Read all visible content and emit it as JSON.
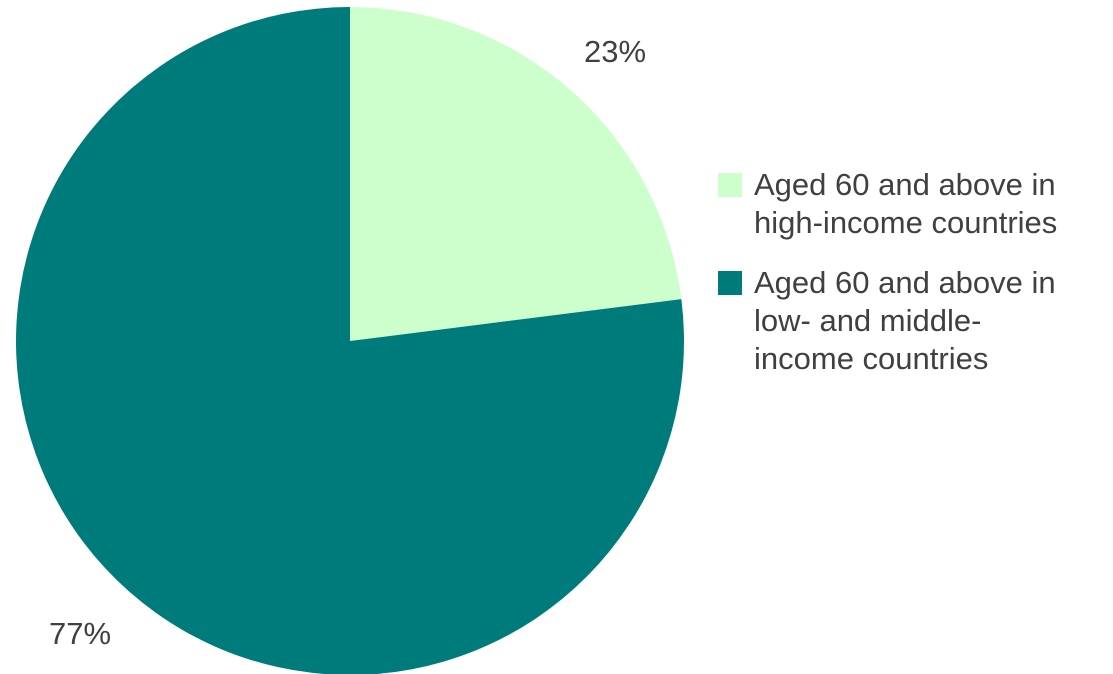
{
  "chart_data": {
    "type": "pie",
    "title": "",
    "categories": [
      "Aged 60 and above in\nhigh-income countries",
      "Aged 60 and above in\nlow- and middle-\nincome countries"
    ],
    "values": [
      23,
      77
    ],
    "data_labels": [
      "23%",
      "77%"
    ],
    "colors": [
      "#ccffcc",
      "#007b7b"
    ],
    "start_angle_deg": 0,
    "direction": "clockwise",
    "legend_position": "right"
  }
}
